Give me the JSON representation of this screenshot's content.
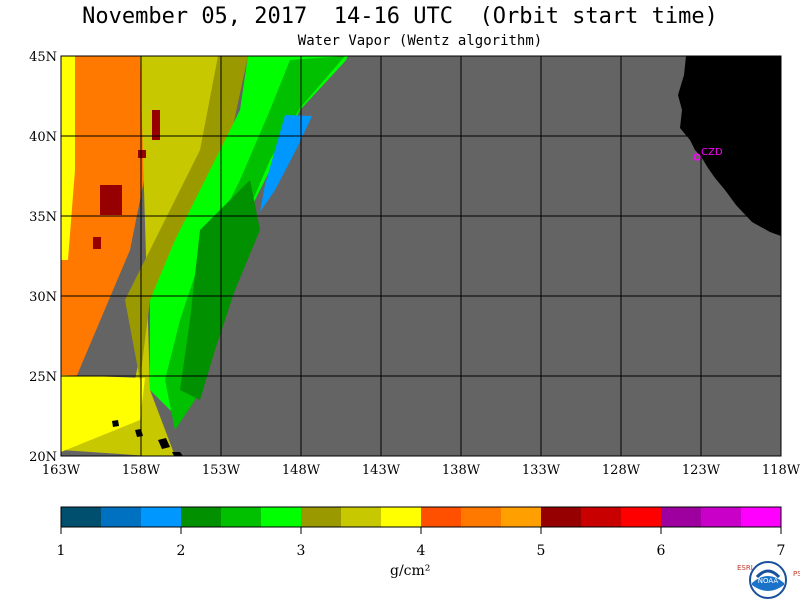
{
  "header": {
    "title": "November 05, 2017  14-16 UTC  (Orbit start time)",
    "subtitle": "Water Vapor (Wentz algorithm)"
  },
  "map": {
    "lon_range": [
      -163,
      -118
    ],
    "lat_range": [
      20,
      45
    ],
    "lon_ticks": [
      "163W",
      "158W",
      "153W",
      "148W",
      "143W",
      "138W",
      "133W",
      "128W",
      "123W",
      "118W"
    ],
    "lat_ticks": [
      "45N",
      "40N",
      "35N",
      "30N",
      "25N",
      "20N"
    ],
    "no_data_color": "#646464",
    "land_color": "#000000",
    "station_label": "CZD",
    "station_color": "#ff00ff"
  },
  "colorbar": {
    "labels": [
      "1",
      "2",
      "3",
      "4",
      "5",
      "6",
      "7"
    ],
    "units": "g/cm²",
    "colors": [
      "#004f6e",
      "#0070c0",
      "#0098ff",
      "#009000",
      "#00c000",
      "#00ff00",
      "#9a9a00",
      "#c8c800",
      "#ffff00",
      "#ff5000",
      "#ff7800",
      "#ffa000",
      "#960000",
      "#c80000",
      "#ff0000",
      "#9e00a0",
      "#c800c8",
      "#ff00ff"
    ]
  },
  "logo": {
    "left_letters": "ESRL",
    "right_letters": "PSD",
    "name": "NOAA"
  }
}
